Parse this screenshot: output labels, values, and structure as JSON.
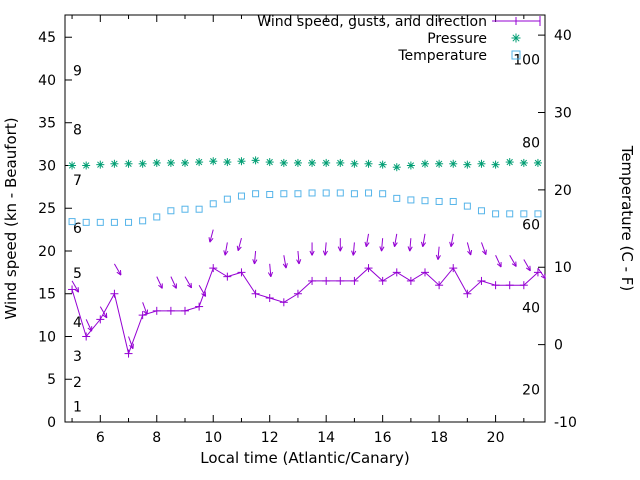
{
  "chart_data": {
    "type": "line",
    "title": "",
    "xlabel": "Local time (Atlantic/Canary)",
    "ylabel": "Wind speed (kn - Beaufort)",
    "y2label": "Temperature (C - F)",
    "legend_position": "top-right-inside",
    "grid": false,
    "legend": [
      {
        "label": "Wind speed, gusts, and direction",
        "marker": "line-plus",
        "color": "#9400D3"
      },
      {
        "label": "Pressure",
        "marker": "star",
        "color": "#009E73"
      },
      {
        "label": "Temperature",
        "marker": "open-square",
        "color": "#56B4E9"
      }
    ],
    "x_range": [
      4.75,
      21.75
    ],
    "y_range": [
      0,
      47.6
    ],
    "y2_range": [
      -10,
      42.6
    ],
    "x_ticks": [
      6,
      8,
      10,
      12,
      14,
      16,
      18,
      20
    ],
    "x_minor_ticks": [
      5,
      7,
      9,
      11,
      13,
      15,
      17,
      19,
      21
    ],
    "y_ticks": [
      0,
      5,
      10,
      15,
      20,
      25,
      30,
      35,
      40,
      45
    ],
    "y2_ticks": [
      -10,
      0,
      10,
      20,
      30,
      40
    ],
    "beaufort_labels": [
      {
        "label": "1",
        "kn": 1.8
      },
      {
        "label": "2",
        "kn": 4.7
      },
      {
        "label": "3",
        "kn": 7.7
      },
      {
        "label": "4",
        "kn": 11.7
      },
      {
        "label": "5",
        "kn": 17.4
      },
      {
        "label": "6",
        "kn": 22.7
      },
      {
        "label": "7",
        "kn": 28.3
      },
      {
        "label": "8",
        "kn": 34.2
      },
      {
        "label": "9",
        "kn": 41.1
      }
    ],
    "right_inner_labels": [
      {
        "label": "20",
        "kn": 3.8
      },
      {
        "label": "40",
        "kn": 13.4
      },
      {
        "label": "60",
        "kn": 23.1
      },
      {
        "label": "80",
        "kn": 32.7
      },
      {
        "label": "100",
        "kn": 42.4
      }
    ],
    "x": [
      5,
      5.5,
      6,
      6.5,
      7,
      7.5,
      8,
      8.5,
      9,
      9.5,
      10,
      10.5,
      11,
      11.5,
      12,
      12.5,
      13,
      13.5,
      14,
      14.5,
      15,
      15.5,
      16,
      16.5,
      17,
      17.5,
      18,
      18.5,
      19,
      19.5,
      20,
      20.5,
      21,
      21.5
    ],
    "series": [
      {
        "name": "wind_speed_kn",
        "values": [
          15.5,
          10,
          12,
          15,
          8,
          12.5,
          13,
          13,
          13,
          13.5,
          18,
          17,
          17.5,
          15,
          14.5,
          14,
          15,
          16.5,
          16.5,
          16.5,
          16.5,
          18,
          16.5,
          17.5,
          16.5,
          17.5,
          16,
          18,
          15,
          16.5,
          16,
          16,
          16,
          17.5
        ]
      },
      {
        "name": "gust_kn",
        "values": [
          16.5,
          12,
          13.5,
          18.5,
          10,
          14,
          17,
          17,
          17,
          16,
          22.5,
          21,
          21.5,
          20,
          18.5,
          19.5,
          20,
          21,
          21,
          21.5,
          21,
          22,
          21.5,
          22,
          21.5,
          22,
          20.5,
          22,
          21,
          21,
          19.5,
          19.5,
          19,
          18
        ]
      },
      {
        "name": "gust_direction_deg",
        "values": [
          150,
          155,
          150,
          150,
          160,
          160,
          155,
          155,
          150,
          150,
          195,
          190,
          195,
          185,
          175,
          170,
          175,
          180,
          185,
          180,
          185,
          190,
          185,
          190,
          185,
          190,
          185,
          190,
          165,
          160,
          155,
          150,
          150,
          145
        ]
      },
      {
        "name": "pressure_plotted",
        "values": [
          30,
          30,
          30.1,
          30.2,
          30.2,
          30.2,
          30.3,
          30.3,
          30.3,
          30.4,
          30.5,
          30.4,
          30.5,
          30.6,
          30.4,
          30.3,
          30.3,
          30.3,
          30.3,
          30.3,
          30.2,
          30.2,
          30.1,
          29.8,
          30,
          30.2,
          30.2,
          30.2,
          30.1,
          30.2,
          30.1,
          30.4,
          30.3,
          30.3
        ]
      },
      {
        "name": "temperature_c",
        "values": [
          15.9,
          15.8,
          15.8,
          15.8,
          15.8,
          16,
          16.5,
          17.3,
          17.5,
          17.5,
          18.2,
          18.8,
          19.2,
          19.5,
          19.4,
          19.5,
          19.5,
          19.6,
          19.6,
          19.6,
          19.5,
          19.6,
          19.5,
          18.9,
          18.7,
          18.6,
          18.5,
          18.5,
          17.9,
          17.3,
          16.9,
          16.9,
          16.9,
          16.9
        ]
      }
    ],
    "colors": {
      "wind": "#9400D3",
      "pressure": "#009E73",
      "temperature": "#56B4E9",
      "axis": "#000000",
      "background": "#ffffff"
    }
  }
}
